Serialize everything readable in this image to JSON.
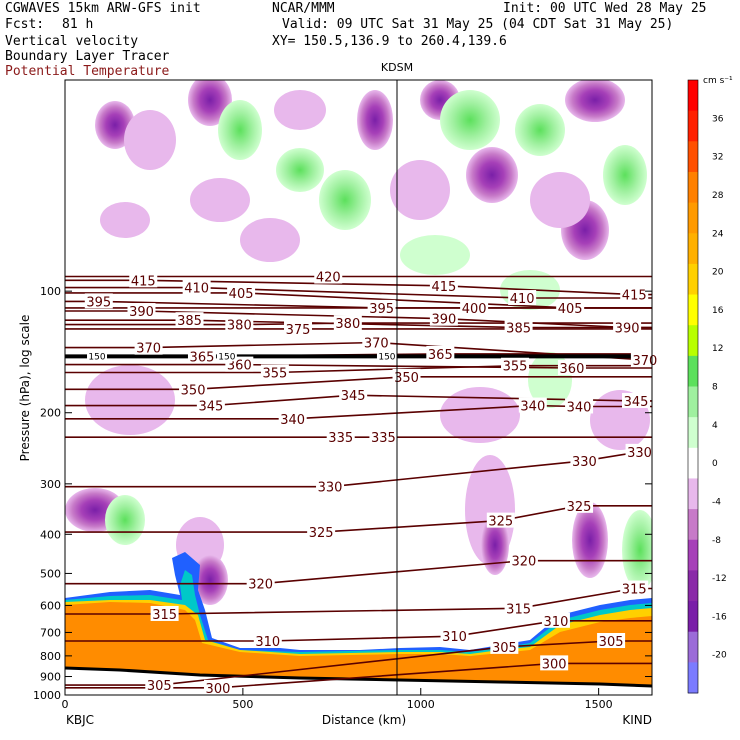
{
  "header": {
    "model": "CGWAVES 15km ARW-GFS init",
    "org": "NCAR/MMM",
    "init": "Init: 00 UTC Wed 28 May 25",
    "fcst_label": "Fcst:",
    "fcst_value": "81 h",
    "valid": "Valid: 09 UTC Sat 31 May 25 (04 CDT Sat 31 May 25)",
    "field1": "Vertical velocity",
    "field2": "Boundary Layer Tracer",
    "field3": "Potential Temperature",
    "xy": "XY= 150.5,136.9 to 260.4,139.6"
  },
  "colors": {
    "theta_contour": "#5a0000",
    "field3_text": "#8b1a1a",
    "plot_bg": "#ffffff",
    "ground": "#000000"
  },
  "chart_data": {
    "type": "heatmap",
    "title": "",
    "xlabel": "Distance (km)",
    "ylabel": "Pressure (hPa), log scale",
    "xlim": [
      0,
      1650
    ],
    "ylim": [
      1000,
      30
    ],
    "y_scale": "log",
    "x_ticks": [
      0,
      500,
      1000,
      1500
    ],
    "y_ticks": [
      100,
      200,
      300,
      400,
      500,
      600,
      700,
      800,
      900,
      1000
    ],
    "left_station": "KBJC",
    "right_station": "KIND",
    "cross_station": {
      "name": "KDSM",
      "distance_km": 935
    },
    "colorbar": {
      "units": "cm s⁻¹",
      "levels": [
        -20,
        -16,
        -12,
        -8,
        -4,
        0,
        4,
        8,
        12,
        16,
        20,
        24,
        28,
        32,
        36
      ],
      "colors": [
        "#7b7bff",
        "#9b6bd8",
        "#7a1fa8",
        "#8a2aa8",
        "#a640b8",
        "#c77ac8",
        "#e8b8ec",
        "#ffffff",
        "#cfffcf",
        "#9ff09f",
        "#5ce05c",
        "#b8ff00",
        "#ffff00",
        "#ffd000",
        "#ffb000",
        "#ff9a00",
        "#ff8000",
        "#ff5000",
        "#ff2000",
        "#ff0000"
      ]
    },
    "contour_series": [
      {
        "value": 300,
        "labels": [
          {
            "x": 430,
            "p": 960
          },
          {
            "x": 1375,
            "p": 835
          }
        ]
      },
      {
        "value": 305,
        "labels": [
          {
            "x": 265,
            "p": 945
          },
          {
            "x": 1235,
            "p": 760
          },
          {
            "x": 1535,
            "p": 735
          }
        ]
      },
      {
        "value": 310,
        "labels": [
          {
            "x": 570,
            "p": 735
          },
          {
            "x": 1095,
            "p": 715
          },
          {
            "x": 1380,
            "p": 655
          }
        ]
      },
      {
        "value": 315,
        "labels": [
          {
            "x": 280,
            "p": 630
          },
          {
            "x": 1275,
            "p": 610
          },
          {
            "x": 1600,
            "p": 545
          }
        ]
      },
      {
        "value": 320,
        "labels": [
          {
            "x": 550,
            "p": 530
          },
          {
            "x": 1290,
            "p": 465
          }
        ]
      },
      {
        "value": 325,
        "labels": [
          {
            "x": 720,
            "p": 395
          },
          {
            "x": 1225,
            "p": 370
          },
          {
            "x": 1445,
            "p": 340
          }
        ]
      },
      {
        "value": 330,
        "labels": [
          {
            "x": 745,
            "p": 305
          },
          {
            "x": 1460,
            "p": 263
          },
          {
            "x": 1615,
            "p": 250
          }
        ]
      },
      {
        "value": 335,
        "labels": [
          {
            "x": 775,
            "p": 230
          },
          {
            "x": 895,
            "p": 230
          }
        ]
      },
      {
        "value": 340,
        "labels": [
          {
            "x": 640,
            "p": 207
          },
          {
            "x": 1315,
            "p": 192
          },
          {
            "x": 1445,
            "p": 193
          }
        ]
      },
      {
        "value": 345,
        "labels": [
          {
            "x": 410,
            "p": 192
          },
          {
            "x": 810,
            "p": 181
          },
          {
            "x": 1605,
            "p": 187
          }
        ]
      },
      {
        "value": 350,
        "labels": [
          {
            "x": 360,
            "p": 175
          },
          {
            "x": 960,
            "p": 163
          }
        ]
      },
      {
        "value": 355,
        "labels": [
          {
            "x": 590,
            "p": 159
          },
          {
            "x": 1265,
            "p": 153
          }
        ]
      },
      {
        "value": 360,
        "labels": [
          {
            "x": 490,
            "p": 152
          },
          {
            "x": 1425,
            "p": 155
          }
        ]
      },
      {
        "value": 365,
        "labels": [
          {
            "x": 385,
            "p": 145
          },
          {
            "x": 1055,
            "p": 143
          }
        ]
      },
      {
        "value": 370,
        "labels": [
          {
            "x": 235,
            "p": 138
          },
          {
            "x": 875,
            "p": 134
          },
          {
            "x": 1630,
            "p": 148
          }
        ]
      },
      {
        "value": 375,
        "labels": [
          {
            "x": 655,
            "p": 124
          }
        ]
      },
      {
        "value": 380,
        "labels": [
          {
            "x": 490,
            "p": 121
          },
          {
            "x": 795,
            "p": 120
          }
        ]
      },
      {
        "value": 385,
        "labels": [
          {
            "x": 350,
            "p": 118
          },
          {
            "x": 1275,
            "p": 123
          }
        ]
      },
      {
        "value": 390,
        "labels": [
          {
            "x": 215,
            "p": 112
          },
          {
            "x": 1065,
            "p": 117
          },
          {
            "x": 1580,
            "p": 123
          }
        ]
      },
      {
        "value": 395,
        "labels": [
          {
            "x": 95,
            "p": 106
          },
          {
            "x": 890,
            "p": 110
          }
        ]
      },
      {
        "value": 400,
        "labels": [
          {
            "x": 1150,
            "p": 110
          }
        ]
      },
      {
        "value": 405,
        "labels": [
          {
            "x": 495,
            "p": 101
          },
          {
            "x": 1420,
            "p": 110
          }
        ]
      },
      {
        "value": 410,
        "labels": [
          {
            "x": 370,
            "p": 98
          },
          {
            "x": 1285,
            "p": 104
          }
        ]
      },
      {
        "value": 415,
        "labels": [
          {
            "x": 220,
            "p": 94
          },
          {
            "x": 1065,
            "p": 97
          },
          {
            "x": 1600,
            "p": 102
          }
        ]
      },
      {
        "value": 420,
        "labels": [
          {
            "x": 740,
            "p": 92
          }
        ]
      }
    ],
    "contour_150": [
      {
        "x": 90,
        "p": 145
      },
      {
        "x": 455,
        "p": 145
      },
      {
        "x": 905,
        "p": 145
      }
    ]
  }
}
